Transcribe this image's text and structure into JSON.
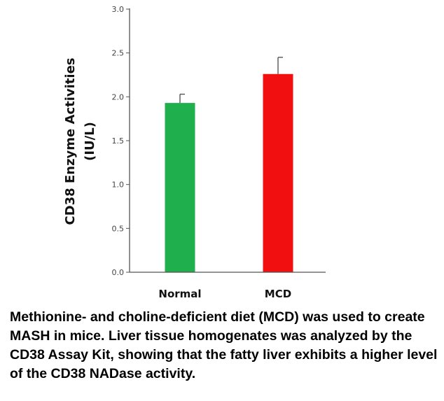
{
  "chart_data": {
    "type": "bar",
    "categories": [
      "Normal",
      "MCD"
    ],
    "values": [
      1.93,
      2.26
    ],
    "errors": [
      0.1,
      0.19
    ],
    "colors": [
      "#1fb04d",
      "#f20f0f"
    ],
    "ylabel": [
      "CD38 Enzyme Activities",
      "(IU/L)"
    ],
    "xlabel": "",
    "title": "",
    "ylim": [
      0,
      3.0
    ],
    "yticks": [
      0.0,
      0.5,
      1.0,
      1.5,
      2.0,
      2.5,
      3.0
    ],
    "ytick_labels": [
      "0.0",
      "0.5",
      "1.0",
      "1.5",
      "2.0",
      "2.5",
      "3.0"
    ],
    "grid": false,
    "legend": "none"
  },
  "caption": "Methionine- and choline-deficient diet (MCD) was used to create MASH in mice. Liver tissue homogenates was analyzed by the CD38 Assay Kit, showing that the fatty liver exhibits a higher level of the CD38 NADase activity."
}
